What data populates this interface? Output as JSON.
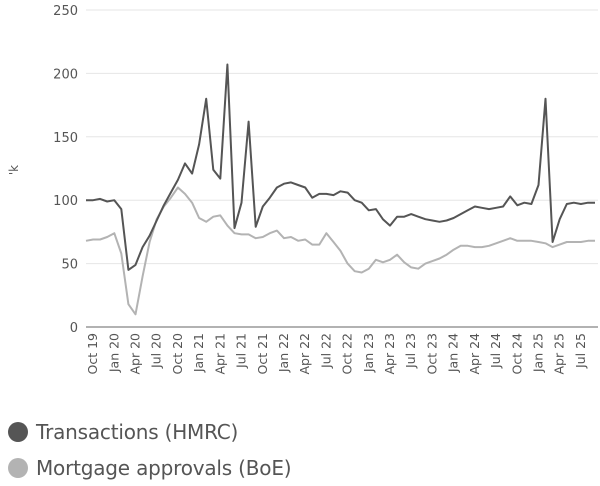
{
  "chart_data": {
    "type": "line",
    "title": "",
    "xlabel": "",
    "ylabel": "'k",
    "ylim": [
      0,
      250
    ],
    "yticks": [
      0,
      50,
      100,
      150,
      200,
      250
    ],
    "grid": true,
    "legend_position": "bottom-left",
    "x_start": "Sep 19",
    "xtick_labels": [
      "Oct 19",
      "Jan 20",
      "Apr 20",
      "Jul 20",
      "Oct 20",
      "Jan 21",
      "Apr 21",
      "Jul 21",
      "Oct 21",
      "Jan 22",
      "Apr 22",
      "Jul 22",
      "Oct 22",
      "Jan 23",
      "Apr 23",
      "Jul 23",
      "Oct 23",
      "Jan 24",
      "Apr 24",
      "Jul 24",
      "Oct 24",
      "Jan 25",
      "Apr 25",
      "Jul 25"
    ],
    "xtick_indices": [
      1,
      4,
      7,
      10,
      13,
      16,
      19,
      22,
      25,
      28,
      31,
      34,
      37,
      40,
      43,
      46,
      49,
      52,
      55,
      58,
      61,
      64,
      67,
      70
    ],
    "series": [
      {
        "name": "Transactions (HMRC)",
        "color": "#555555",
        "values": [
          100,
          100,
          101,
          99,
          100,
          93,
          45,
          49,
          63,
          72,
          84,
          96,
          106,
          116,
          129,
          121,
          144,
          180,
          124,
          117,
          207,
          78,
          98,
          162,
          79,
          95,
          102,
          110,
          113,
          114,
          112,
          110,
          102,
          105,
          105,
          104,
          107,
          106,
          100,
          98,
          92,
          93,
          85,
          80,
          87,
          87,
          89,
          87,
          85,
          84,
          83,
          84,
          86,
          89,
          92,
          95,
          94,
          93,
          94,
          95,
          103,
          96,
          98,
          97,
          112,
          180,
          67,
          85,
          97,
          98,
          97,
          98,
          98
        ]
      },
      {
        "name": "Mortgage approvals (BoE)",
        "color": "#b3b3b3",
        "values": [
          68,
          69,
          69,
          71,
          74,
          58,
          18,
          10,
          40,
          67,
          85,
          95,
          102,
          110,
          105,
          98,
          86,
          83,
          87,
          88,
          80,
          74,
          73,
          73,
          70,
          71,
          74,
          76,
          70,
          71,
          68,
          69,
          65,
          65,
          74,
          67,
          60,
          50,
          44,
          43,
          46,
          53,
          51,
          53,
          57,
          51,
          47,
          46,
          50,
          52,
          54,
          57,
          61,
          64,
          64,
          63,
          63,
          64,
          66,
          68,
          70,
          68,
          68,
          68,
          67,
          66,
          63,
          65,
          67,
          67,
          67,
          68,
          68
        ]
      }
    ]
  },
  "y_axis": {
    "label": "'k",
    "ticks": [
      "0",
      "50",
      "100",
      "150",
      "200",
      "250"
    ]
  },
  "legend": {
    "items": [
      {
        "label": "Transactions (HMRC)",
        "color": "#555555"
      },
      {
        "label": "Mortgage approvals (BoE)",
        "color": "#b3b3b3"
      }
    ]
  }
}
